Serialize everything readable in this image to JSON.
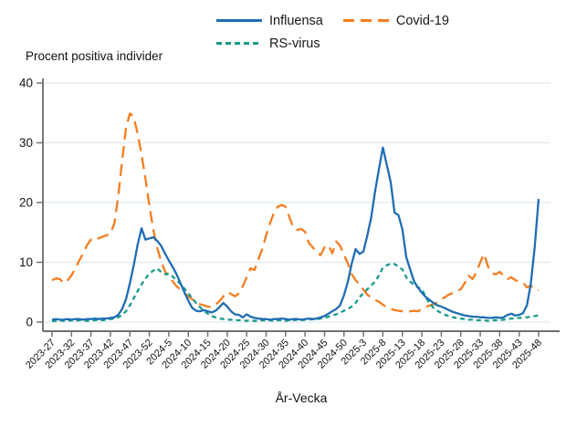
{
  "chart": {
    "y_axis_title": "Procent positiva individer",
    "x_axis_title": "År-Vecka",
    "legend": [
      {
        "label": "Influensa",
        "color": "#1f6db4",
        "style": "solid"
      },
      {
        "label": "Covid-19",
        "color": "#f57d20",
        "style": "long-dash"
      },
      {
        "label": "RS-virus",
        "color": "#169b8a",
        "style": "short-dash"
      }
    ],
    "colors": {
      "gridline": "#e4edf2",
      "axis": "#3f3f3f",
      "tick": "#757575",
      "text": "#141414"
    }
  },
  "chart_data": {
    "type": "line",
    "title": "",
    "xlabel": "År-Vecka",
    "ylabel": "Procent positiva individer",
    "ylim": [
      0,
      40
    ],
    "yticks": [
      0,
      10,
      20,
      30,
      40
    ],
    "grid": "horizontal",
    "legend_position": "top",
    "xticks": [
      "2023-27",
      "2023-32",
      "2023-37",
      "2023-42",
      "2023-47",
      "2023-52",
      "2024-5",
      "2024-10",
      "2024-15",
      "2024-20",
      "2024-25",
      "2024-30",
      "2024-35",
      "2024-40",
      "2024-45",
      "2024-50",
      "2025-3",
      "2025-8",
      "2025-13",
      "2025-18",
      "2025-23",
      "2025-28",
      "2025-33",
      "2025-38",
      "2025-43",
      "2025-48"
    ],
    "x": [
      "2023-27",
      "2023-28",
      "2023-29",
      "2023-30",
      "2023-31",
      "2023-32",
      "2023-33",
      "2023-34",
      "2023-35",
      "2023-36",
      "2023-37",
      "2023-38",
      "2023-39",
      "2023-40",
      "2023-41",
      "2023-42",
      "2023-43",
      "2023-44",
      "2023-45",
      "2023-46",
      "2023-47",
      "2023-48",
      "2023-49",
      "2023-50",
      "2023-51",
      "2023-52",
      "2024-1",
      "2024-2",
      "2024-3",
      "2024-4",
      "2024-5",
      "2024-6",
      "2024-7",
      "2024-8",
      "2024-9",
      "2024-10",
      "2024-11",
      "2024-12",
      "2024-13",
      "2024-14",
      "2024-15",
      "2024-16",
      "2024-17",
      "2024-18",
      "2024-19",
      "2024-20",
      "2024-21",
      "2024-22",
      "2024-23",
      "2024-24",
      "2024-25",
      "2024-26",
      "2024-27",
      "2024-28",
      "2024-29",
      "2024-30",
      "2024-31",
      "2024-32",
      "2024-33",
      "2024-34",
      "2024-35",
      "2024-36",
      "2024-37",
      "2024-38",
      "2024-39",
      "2024-40",
      "2024-41",
      "2024-42",
      "2024-43",
      "2024-44",
      "2024-45",
      "2024-46",
      "2024-47",
      "2024-48",
      "2024-49",
      "2024-50",
      "2024-51",
      "2024-52",
      "2025-1",
      "2025-2",
      "2025-3",
      "2025-4",
      "2025-5",
      "2025-6",
      "2025-7",
      "2025-8",
      "2025-9",
      "2025-10",
      "2025-11",
      "2025-12",
      "2025-13",
      "2025-14",
      "2025-15",
      "2025-16",
      "2025-17",
      "2025-18",
      "2025-19",
      "2025-20",
      "2025-21",
      "2025-22",
      "2025-23",
      "2025-24",
      "2025-25",
      "2025-26",
      "2025-27",
      "2025-28",
      "2025-29",
      "2025-30",
      "2025-31",
      "2025-32",
      "2025-33",
      "2025-34",
      "2025-35",
      "2025-36",
      "2025-37",
      "2025-38",
      "2025-39",
      "2025-40",
      "2025-41",
      "2025-42",
      "2025-43",
      "2025-44",
      "2025-45",
      "2025-46",
      "2025-47",
      "2025-48"
    ],
    "series": [
      {
        "name": "Influensa",
        "color": "#1f6db4",
        "dash": "solid",
        "values": [
          0.4,
          0.5,
          0.4,
          0.4,
          0.5,
          0.4,
          0.5,
          0.5,
          0.4,
          0.5,
          0.5,
          0.6,
          0.5,
          0.6,
          0.6,
          0.7,
          0.8,
          1.2,
          2.2,
          3.8,
          6.5,
          9.5,
          13.0,
          15.7,
          13.8,
          14.0,
          14.2,
          13.6,
          12.8,
          11.5,
          10.3,
          9.2,
          8.0,
          6.5,
          5.0,
          3.6,
          2.4,
          1.9,
          1.8,
          2.0,
          1.8,
          1.6,
          1.9,
          2.5,
          3.2,
          2.6,
          1.8,
          1.3,
          1.2,
          0.8,
          1.3,
          0.9,
          0.7,
          0.6,
          0.5,
          0.5,
          0.4,
          0.5,
          0.5,
          0.6,
          0.5,
          0.4,
          0.5,
          0.5,
          0.4,
          0.5,
          0.6,
          0.5,
          0.6,
          0.8,
          1.0,
          1.4,
          1.8,
          2.2,
          2.8,
          4.5,
          6.8,
          9.8,
          12.2,
          11.4,
          11.8,
          14.5,
          17.5,
          21.9,
          25.7,
          29.2,
          26.3,
          23.4,
          18.3,
          17.9,
          15.5,
          10.9,
          8.8,
          6.8,
          5.8,
          4.9,
          4.2,
          3.7,
          3.2,
          2.8,
          2.6,
          2.3,
          2.0,
          1.7,
          1.5,
          1.3,
          1.1,
          1.0,
          0.9,
          0.9,
          0.8,
          0.8,
          0.7,
          0.7,
          0.8,
          0.7,
          0.8,
          1.2,
          1.4,
          1.1,
          1.2,
          1.5,
          2.8,
          6.5,
          12.5,
          20.6
        ]
      },
      {
        "name": "Covid-19",
        "color": "#f57d20",
        "dash": "13 7",
        "values": [
          7.0,
          7.3,
          7.2,
          6.5,
          7.0,
          7.8,
          9.0,
          10.3,
          11.5,
          12.9,
          13.8,
          14.2,
          14.0,
          14.3,
          14.5,
          14.8,
          16.5,
          21.0,
          27.0,
          32.5,
          34.9,
          34.3,
          31.5,
          28.0,
          24.0,
          19.5,
          15.5,
          12.5,
          10.2,
          8.5,
          7.6,
          6.8,
          6.0,
          5.4,
          4.8,
          4.3,
          3.8,
          3.4,
          3.0,
          2.8,
          2.6,
          2.5,
          2.9,
          3.5,
          4.3,
          5.0,
          4.7,
          4.3,
          4.8,
          6.0,
          7.5,
          9.0,
          8.7,
          10.5,
          12.2,
          14.5,
          16.5,
          18.3,
          19.3,
          19.6,
          19.3,
          17.5,
          15.8,
          15.4,
          15.6,
          15.1,
          13.2,
          12.5,
          11.6,
          11.2,
          12.5,
          12.9,
          11.5,
          13.5,
          12.8,
          11.2,
          9.8,
          8.0,
          7.0,
          6.3,
          5.4,
          4.6,
          4.1,
          3.7,
          3.4,
          2.9,
          2.5,
          2.2,
          2.0,
          1.9,
          1.8,
          1.7,
          1.8,
          1.9,
          1.8,
          2.2,
          2.5,
          2.8,
          3.0,
          3.3,
          3.8,
          4.2,
          4.6,
          4.9,
          5.2,
          5.5,
          6.5,
          7.8,
          7.2,
          8.3,
          10.0,
          11.4,
          9.3,
          8.2,
          8.0,
          8.4,
          7.8,
          7.2,
          7.5,
          7.0,
          6.8,
          6.6,
          5.8,
          6.1,
          5.5,
          5.3
        ]
      },
      {
        "name": "RS-virus",
        "color": "#169b8a",
        "dash": "5 4",
        "values": [
          0.2,
          0.2,
          0.3,
          0.2,
          0.2,
          0.3,
          0.2,
          0.3,
          0.3,
          0.2,
          0.3,
          0.3,
          0.4,
          0.3,
          0.4,
          0.5,
          0.6,
          0.8,
          1.2,
          1.8,
          2.8,
          4.0,
          5.2,
          6.3,
          7.3,
          8.1,
          8.6,
          9.0,
          8.4,
          8.0,
          8.1,
          7.6,
          7.0,
          6.4,
          5.6,
          4.8,
          4.0,
          3.2,
          2.5,
          1.9,
          1.4,
          1.0,
          0.8,
          0.6,
          0.5,
          0.4,
          0.4,
          0.3,
          0.3,
          0.3,
          0.2,
          0.3,
          0.2,
          0.2,
          0.3,
          0.2,
          0.3,
          0.2,
          0.3,
          0.3,
          0.2,
          0.3,
          0.3,
          0.4,
          0.3,
          0.4,
          0.4,
          0.5,
          0.5,
          0.6,
          0.7,
          0.9,
          1.1,
          1.3,
          1.6,
          1.9,
          2.2,
          2.6,
          3.2,
          4.2,
          4.8,
          5.5,
          6.1,
          6.8,
          7.8,
          9.1,
          9.5,
          9.8,
          9.7,
          9.3,
          8.8,
          7.5,
          6.8,
          6.2,
          5.8,
          5.5,
          4.2,
          3.1,
          2.4,
          1.9,
          1.5,
          1.2,
          1.0,
          0.8,
          0.7,
          0.6,
          0.5,
          0.4,
          0.4,
          0.3,
          0.3,
          0.3,
          0.2,
          0.3,
          0.3,
          0.3,
          0.4,
          0.5,
          0.6,
          0.6,
          0.7,
          0.7,
          0.8,
          0.9,
          1.0,
          1.1
        ]
      }
    ]
  }
}
